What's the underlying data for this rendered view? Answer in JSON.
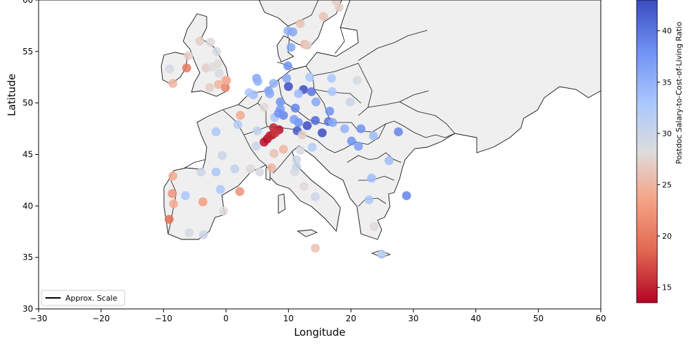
{
  "chart_data": {
    "type": "scatter",
    "title": "",
    "xlabel": "Longitude",
    "ylabel": "Latitude",
    "xlim": [
      -30,
      60
    ],
    "ylim": [
      30,
      60
    ],
    "xticks": [
      -30,
      -20,
      -10,
      0,
      10,
      20,
      30,
      40,
      50,
      60
    ],
    "yticks": [
      30,
      35,
      40,
      45,
      50,
      55,
      60
    ],
    "xtick_labels": [
      "−30",
      "−20",
      "−10",
      "0",
      "10",
      "20",
      "30",
      "40",
      "50",
      "60"
    ],
    "ytick_labels": [
      "30",
      "35",
      "40",
      "45",
      "50",
      "55",
      "60"
    ],
    "grid": false,
    "colorbar": {
      "label": "Postdoc Salary-to-Cost-of-Living Ratio",
      "range": [
        13.5,
        43
      ],
      "ticks": [
        15,
        20,
        25,
        30,
        35,
        40
      ],
      "tick_labels": [
        "15",
        "20",
        "25",
        "30",
        "35",
        "40"
      ],
      "colormap": "coolwarm_r"
    },
    "legend": {
      "position": "bottom-left",
      "entries": [
        "Approx. Scale"
      ]
    },
    "points": [
      {
        "lon": -2.5,
        "lat": 55.9,
        "v": 28
      },
      {
        "lon": -1.5,
        "lat": 55.0,
        "v": 29
      },
      {
        "lon": -3.2,
        "lat": 53.4,
        "v": 27
      },
      {
        "lon": -2.2,
        "lat": 53.5,
        "v": 28
      },
      {
        "lon": -1.3,
        "lat": 53.8,
        "v": 28
      },
      {
        "lon": -1.1,
        "lat": 52.9,
        "v": 29
      },
      {
        "lon": -0.1,
        "lat": 52.2,
        "v": 26
      },
      {
        "lon": -1.2,
        "lat": 51.8,
        "v": 25
      },
      {
        "lon": -0.1,
        "lat": 51.5,
        "v": 21
      },
      {
        "lon": -2.6,
        "lat": 51.5,
        "v": 27
      },
      {
        "lon": 0.1,
        "lat": 52.2,
        "v": 24
      },
      {
        "lon": -4.2,
        "lat": 56.0,
        "v": 27
      },
      {
        "lon": -6.3,
        "lat": 53.4,
        "v": 20
      },
      {
        "lon": -8.5,
        "lat": 51.9,
        "v": 25
      },
      {
        "lon": -6.0,
        "lat": 54.6,
        "v": 27
      },
      {
        "lon": -9.0,
        "lat": 53.3,
        "v": 29
      },
      {
        "lon": 2.3,
        "lat": 48.8,
        "v": 24
      },
      {
        "lon": 4.8,
        "lat": 45.8,
        "v": 30
      },
      {
        "lon": 1.4,
        "lat": 43.6,
        "v": 31
      },
      {
        "lon": -0.6,
        "lat": 44.9,
        "v": 30
      },
      {
        "lon": 5.4,
        "lat": 43.3,
        "v": 29
      },
      {
        "lon": 7.3,
        "lat": 43.7,
        "v": 25
      },
      {
        "lon": 3.9,
        "lat": 43.6,
        "v": 28
      },
      {
        "lon": -1.6,
        "lat": 47.2,
        "v": 33
      },
      {
        "lon": 1.9,
        "lat": 47.9,
        "v": 32
      },
      {
        "lon": 7.8,
        "lat": 48.6,
        "v": 33
      },
      {
        "lon": 5.0,
        "lat": 47.3,
        "v": 31
      },
      {
        "lon": 4.4,
        "lat": 50.8,
        "v": 34
      },
      {
        "lon": 4.9,
        "lat": 52.4,
        "v": 36
      },
      {
        "lon": 5.1,
        "lat": 52.1,
        "v": 35
      },
      {
        "lon": 3.7,
        "lat": 51.0,
        "v": 33
      },
      {
        "lon": 6.1,
        "lat": 49.6,
        "v": 28
      },
      {
        "lon": 6.1,
        "lat": 46.2,
        "v": 14
      },
      {
        "lon": 6.6,
        "lat": 46.5,
        "v": 14
      },
      {
        "lon": 7.4,
        "lat": 46.9,
        "v": 14
      },
      {
        "lon": 8.5,
        "lat": 47.4,
        "v": 14
      },
      {
        "lon": 7.6,
        "lat": 47.6,
        "v": 15
      },
      {
        "lon": 7.0,
        "lat": 46.8,
        "v": 15
      },
      {
        "lon": 7.9,
        "lat": 47.1,
        "v": 16
      },
      {
        "lon": 9.9,
        "lat": 53.6,
        "v": 38
      },
      {
        "lon": 13.4,
        "lat": 52.5,
        "v": 33
      },
      {
        "lon": 11.6,
        "lat": 48.1,
        "v": 38
      },
      {
        "lon": 8.7,
        "lat": 50.1,
        "v": 38
      },
      {
        "lon": 7.0,
        "lat": 50.9,
        "v": 36
      },
      {
        "lon": 9.2,
        "lat": 48.8,
        "v": 39
      },
      {
        "lon": 10.0,
        "lat": 51.6,
        "v": 43
      },
      {
        "lon": 12.4,
        "lat": 51.3,
        "v": 44
      },
      {
        "lon": 13.7,
        "lat": 51.1,
        "v": 40
      },
      {
        "lon": 8.7,
        "lat": 49.4,
        "v": 37
      },
      {
        "lon": 6.8,
        "lat": 51.2,
        "v": 36
      },
      {
        "lon": 7.6,
        "lat": 51.9,
        "v": 35
      },
      {
        "lon": 11.1,
        "lat": 49.5,
        "v": 39
      },
      {
        "lon": 10.9,
        "lat": 48.4,
        "v": 37
      },
      {
        "lon": 8.4,
        "lat": 49.0,
        "v": 38
      },
      {
        "lon": 11.6,
        "lat": 50.9,
        "v": 34
      },
      {
        "lon": 9.7,
        "lat": 52.4,
        "v": 36
      },
      {
        "lon": 16.4,
        "lat": 48.2,
        "v": 40
      },
      {
        "lon": 15.4,
        "lat": 47.1,
        "v": 43
      },
      {
        "lon": 11.4,
        "lat": 47.3,
        "v": 42
      },
      {
        "lon": 13.0,
        "lat": 47.8,
        "v": 44
      },
      {
        "lon": 14.3,
        "lat": 48.3,
        "v": 41
      },
      {
        "lon": 14.4,
        "lat": 50.1,
        "v": 36
      },
      {
        "lon": 16.6,
        "lat": 49.2,
        "v": 38
      },
      {
        "lon": 17.1,
        "lat": 48.1,
        "v": 36
      },
      {
        "lon": 19.9,
        "lat": 50.1,
        "v": 30
      },
      {
        "lon": 21.0,
        "lat": 52.2,
        "v": 29
      },
      {
        "lon": 17.0,
        "lat": 51.1,
        "v": 33
      },
      {
        "lon": 16.9,
        "lat": 52.4,
        "v": 33
      },
      {
        "lon": 19.0,
        "lat": 47.5,
        "v": 35
      },
      {
        "lon": 21.6,
        "lat": 47.5,
        "v": 38
      },
      {
        "lon": 20.1,
        "lat": 46.3,
        "v": 38
      },
      {
        "lon": 21.2,
        "lat": 45.8,
        "v": 37
      },
      {
        "lon": 23.6,
        "lat": 46.8,
        "v": 34
      },
      {
        "lon": 26.1,
        "lat": 44.4,
        "v": 34
      },
      {
        "lon": 27.6,
        "lat": 47.2,
        "v": 39
      },
      {
        "lon": 23.3,
        "lat": 42.7,
        "v": 34
      },
      {
        "lon": 28.9,
        "lat": 41.0,
        "v": 39
      },
      {
        "lon": 22.9,
        "lat": 40.6,
        "v": 33
      },
      {
        "lon": 23.7,
        "lat": 38.0,
        "v": 28
      },
      {
        "lon": 24.9,
        "lat": 35.3,
        "v": 32
      },
      {
        "lon": 12.5,
        "lat": 41.9,
        "v": 28
      },
      {
        "lon": 9.2,
        "lat": 45.5,
        "v": 25
      },
      {
        "lon": 7.7,
        "lat": 45.1,
        "v": 26
      },
      {
        "lon": 11.3,
        "lat": 43.8,
        "v": 31
      },
      {
        "lon": 11.3,
        "lat": 44.5,
        "v": 30
      },
      {
        "lon": 14.3,
        "lat": 40.9,
        "v": 30
      },
      {
        "lon": 11.9,
        "lat": 45.4,
        "v": 29
      },
      {
        "lon": 13.8,
        "lat": 45.7,
        "v": 32
      },
      {
        "lon": 12.2,
        "lat": 46.9,
        "v": 27
      },
      {
        "lon": 14.3,
        "lat": 35.9,
        "v": 26
      },
      {
        "lon": 11.0,
        "lat": 43.3,
        "v": 29
      },
      {
        "lon": -3.7,
        "lat": 40.4,
        "v": 23
      },
      {
        "lon": 2.2,
        "lat": 41.4,
        "v": 22
      },
      {
        "lon": -0.4,
        "lat": 39.5,
        "v": 28
      },
      {
        "lon": -5.9,
        "lat": 37.4,
        "v": 29
      },
      {
        "lon": -3.6,
        "lat": 37.2,
        "v": 30
      },
      {
        "lon": -8.5,
        "lat": 42.9,
        "v": 24
      },
      {
        "lon": -4.0,
        "lat": 43.3,
        "v": 30
      },
      {
        "lon": -1.6,
        "lat": 43.3,
        "v": 33
      },
      {
        "lon": -9.1,
        "lat": 38.7,
        "v": 19
      },
      {
        "lon": -8.6,
        "lat": 41.2,
        "v": 22
      },
      {
        "lon": -8.4,
        "lat": 40.2,
        "v": 24
      },
      {
        "lon": -6.5,
        "lat": 41.0,
        "v": 33
      },
      {
        "lon": -0.9,
        "lat": 41.6,
        "v": 33
      },
      {
        "lon": 10.4,
        "lat": 55.4,
        "v": 36
      },
      {
        "lon": 12.6,
        "lat": 55.7,
        "v": 25
      },
      {
        "lon": 9.9,
        "lat": 57.0,
        "v": 35
      },
      {
        "lon": 11.9,
        "lat": 57.7,
        "v": 26
      },
      {
        "lon": 13.0,
        "lat": 55.6,
        "v": 27
      },
      {
        "lon": 15.6,
        "lat": 58.4,
        "v": 26
      },
      {
        "lon": 17.6,
        "lat": 59.9,
        "v": 27
      },
      {
        "lon": 18.1,
        "lat": 59.3,
        "v": 27
      },
      {
        "lon": 10.7,
        "lat": 56.9,
        "v": 36
      }
    ]
  }
}
